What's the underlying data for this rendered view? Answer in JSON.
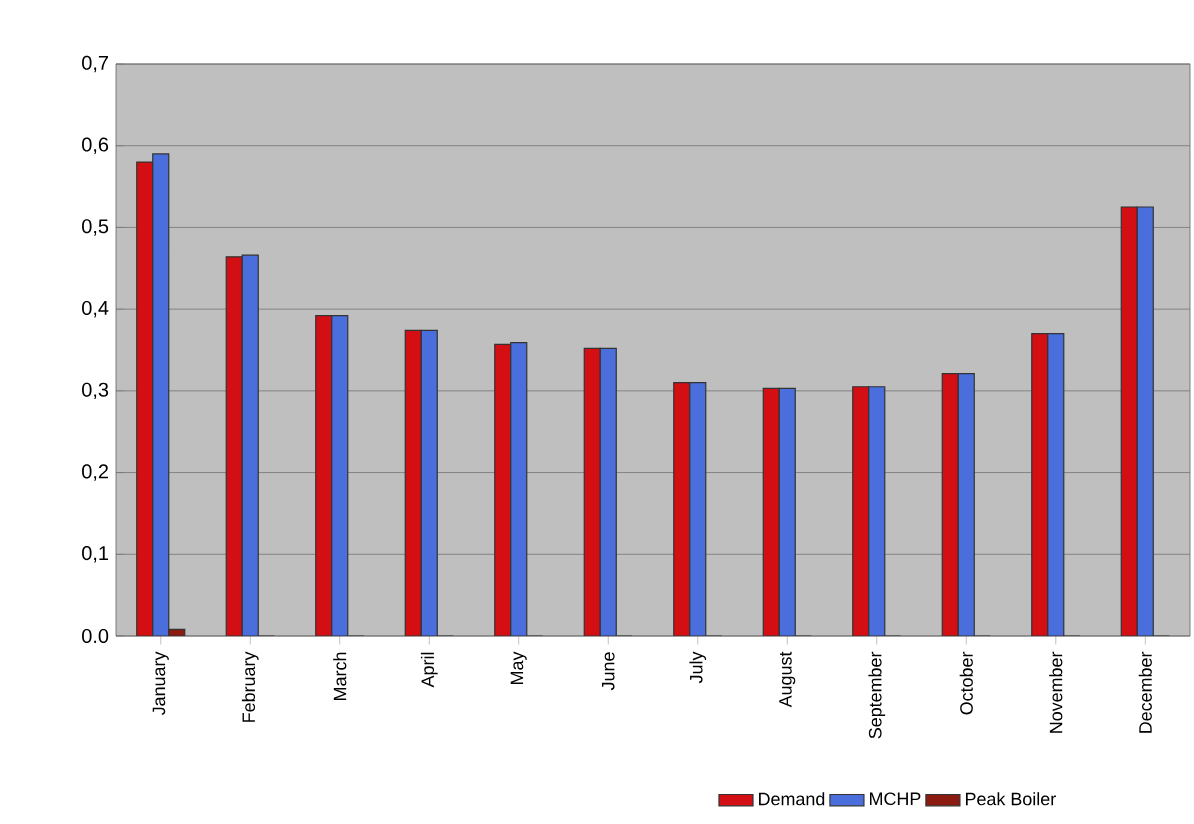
{
  "chart_data": {
    "type": "bar",
    "categories": [
      "January",
      "February",
      "March",
      "April",
      "May",
      "June",
      "July",
      "August",
      "September",
      "October",
      "November",
      "December"
    ],
    "series": [
      {
        "name": "Demand",
        "color": "#d40f14",
        "values": [
          0.58,
          0.464,
          0.392,
          0.374,
          0.357,
          0.352,
          0.31,
          0.303,
          0.305,
          0.321,
          0.37,
          0.525
        ]
      },
      {
        "name": "MCHP",
        "color": "#4a6fdc",
        "values": [
          0.59,
          0.466,
          0.392,
          0.374,
          0.359,
          0.352,
          0.31,
          0.303,
          0.305,
          0.321,
          0.37,
          0.525
        ]
      },
      {
        "name": "Peak Boiler",
        "color": "#8b1a10",
        "values": [
          0.008,
          0,
          0,
          0,
          0,
          0,
          0,
          0,
          0,
          0,
          0,
          0
        ]
      }
    ],
    "ylim": [
      0,
      0.7
    ],
    "yticks": [
      {
        "value": 0,
        "label": "0.0"
      },
      {
        "value": 0.1,
        "label": "0,1"
      },
      {
        "value": 0.2,
        "label": "0,2"
      },
      {
        "value": 0.3,
        "label": "0,3"
      },
      {
        "value": 0.4,
        "label": "0,4"
      },
      {
        "value": 0.5,
        "label": "0,5"
      },
      {
        "value": 0.6,
        "label": "0,6"
      },
      {
        "value": 0.7,
        "label": "0,7"
      }
    ],
    "grid": "y",
    "legend": "bottom"
  }
}
